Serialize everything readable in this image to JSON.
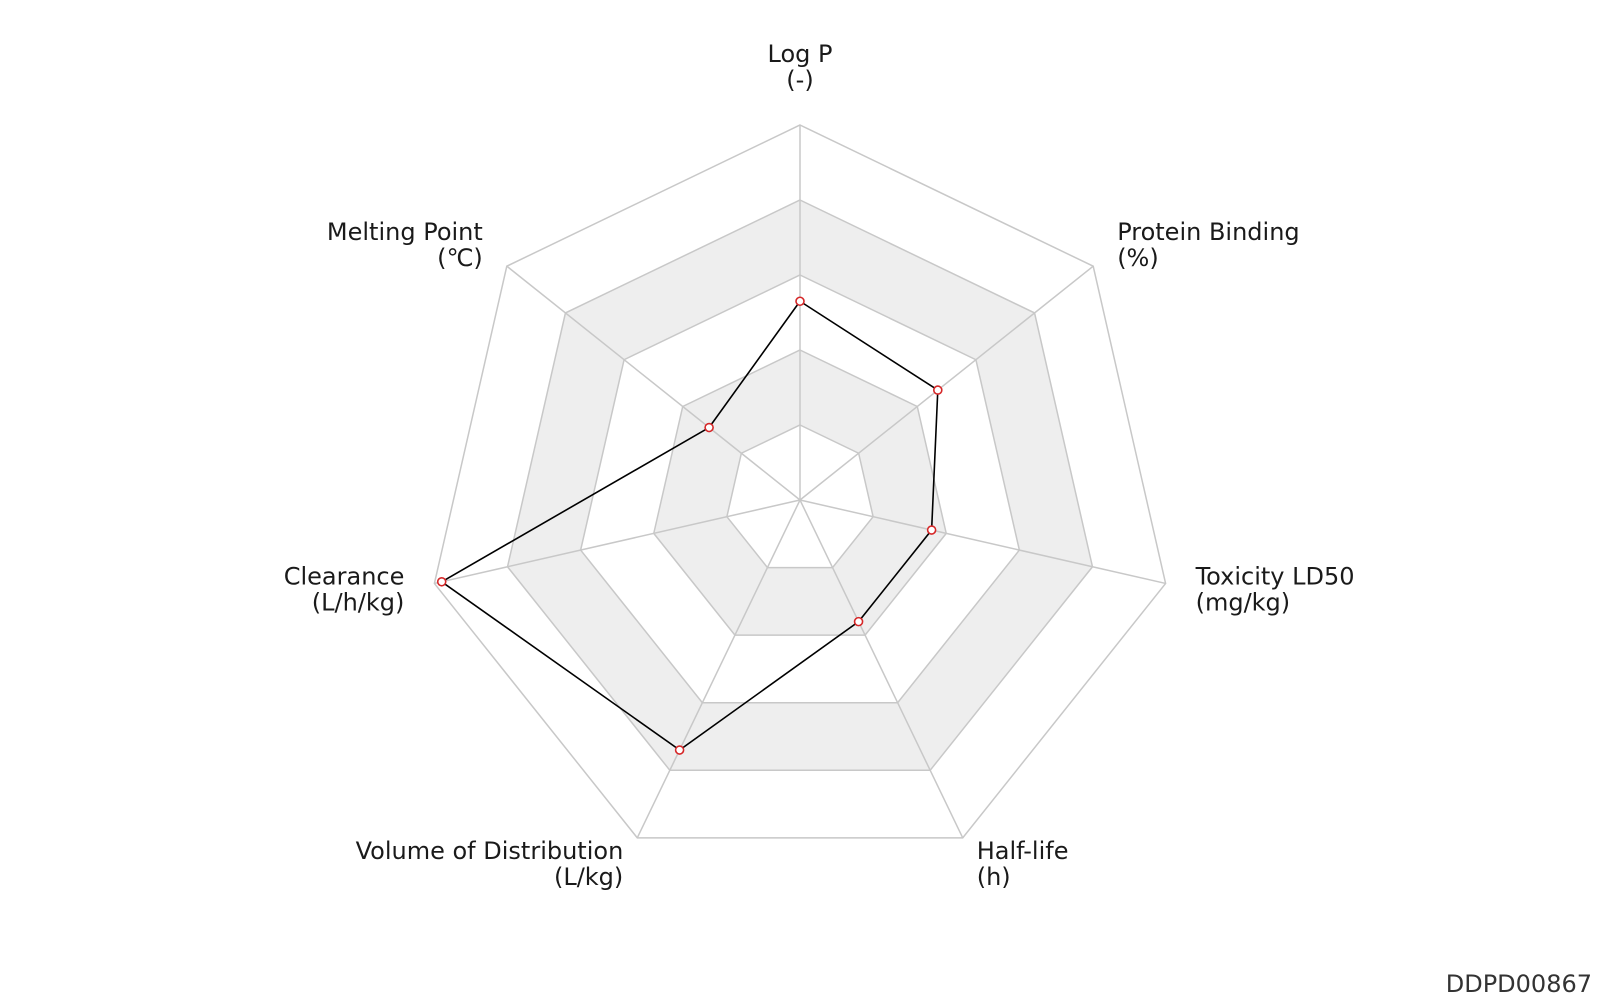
{
  "chart_data": {
    "type": "radar",
    "title": "",
    "axes": [
      {
        "name": "Log P",
        "unit": "(-)"
      },
      {
        "name": "Protein Binding",
        "unit": "(%)"
      },
      {
        "name": "Toxicity LD50",
        "unit": "(mg/kg)"
      },
      {
        "name": "Half-life",
        "unit": "(h)"
      },
      {
        "name": "Volume of Distribution",
        "unit": "(L/kg)"
      },
      {
        "name": "Clearance",
        "unit": "(L/h/kg)"
      },
      {
        "name": "Melting Point",
        "unit": "(℃)"
      }
    ],
    "series": [
      {
        "values": [
          0.53,
          0.47,
          0.36,
          0.36,
          0.74,
          0.98,
          0.31
        ]
      }
    ],
    "range": [
      0,
      1
    ],
    "rings": 5,
    "grid": true,
    "colors": {
      "line": "#000000",
      "marker_edge": "#d62728",
      "marker_fill": "#ffffff",
      "grid": "#c8c8c8",
      "band_fill": "#eeeeee"
    }
  },
  "watermark": "DDPD00867"
}
